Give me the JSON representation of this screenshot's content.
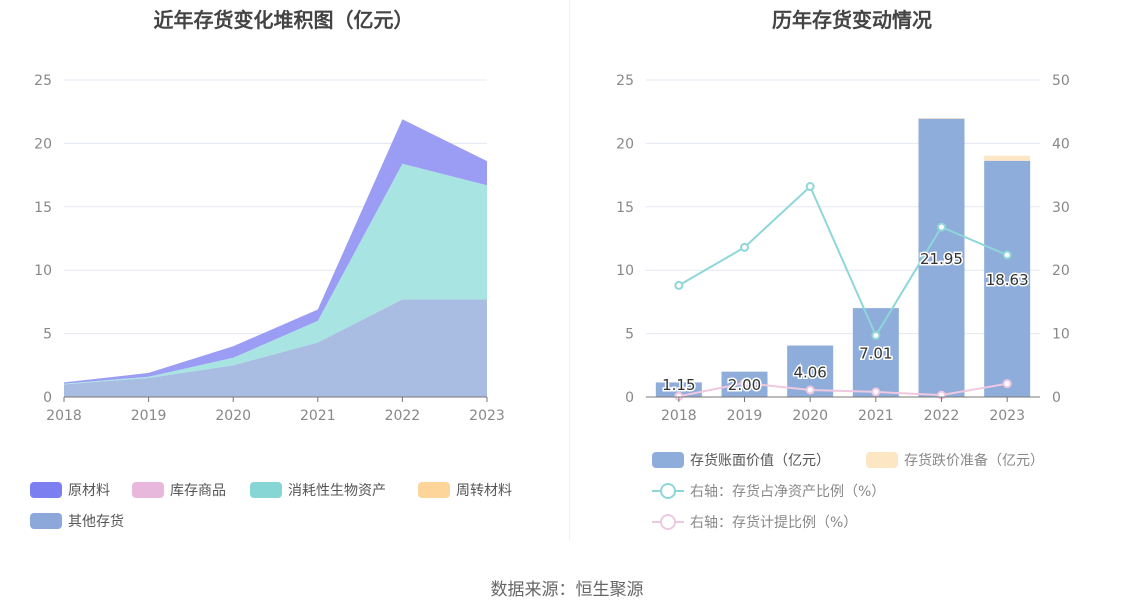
{
  "left_chart": {
    "title": "近年存货变化堆积图（亿元）",
    "legend": [
      {
        "name": "原材料",
        "color": "#7b7ff0"
      },
      {
        "name": "库存商品",
        "color": "#e8b8dc"
      },
      {
        "name": "消耗性生物资产",
        "color": "#86d6d6"
      },
      {
        "name": "周转材料",
        "color": "#fdd59a"
      },
      {
        "name": "其他存货",
        "color": "#8ca8db"
      }
    ]
  },
  "right_chart": {
    "title": "历年存货变动情况",
    "legend": [
      {
        "name": "存货账面价值（亿元）",
        "color": "#8eaddb"
      },
      {
        "name": "存货跌价准备（亿元）",
        "color": "#fde6c4"
      },
      {
        "name": "右轴：存货占净资产比例（%）",
        "color": "#8fd6d9"
      },
      {
        "name": "右轴：存货计提比例（%）",
        "color": "#f0c8e0"
      }
    ]
  },
  "chart_data": [
    {
      "type": "area",
      "title": "近年存货变化堆积图（亿元）",
      "stacked": true,
      "x": [
        "2018",
        "2019",
        "2020",
        "2021",
        "2022",
        "2023"
      ],
      "ylim": [
        0,
        25
      ],
      "yticks": [
        0,
        5,
        10,
        15,
        20,
        25
      ],
      "grid": true,
      "legend_position": "bottom",
      "series": [
        {
          "name": "其他存货",
          "color": "#a9bde3",
          "values": [
            1.0,
            1.5,
            2.5,
            4.3,
            7.7,
            7.7
          ]
        },
        {
          "name": "周转材料",
          "color": "#fdd59a",
          "values": [
            0,
            0,
            0,
            0,
            0,
            0
          ]
        },
        {
          "name": "消耗性生物资产",
          "color": "#a8e4e2",
          "values": [
            0.05,
            0.1,
            0.6,
            1.7,
            10.7,
            9.0
          ]
        },
        {
          "name": "库存商品",
          "color": "#e8b8dc",
          "values": [
            0,
            0,
            0,
            0,
            0,
            0
          ]
        },
        {
          "name": "原材料",
          "color": "#9b9cf3",
          "values": [
            0.1,
            0.3,
            0.9,
            0.9,
            3.5,
            1.9
          ]
        }
      ]
    },
    {
      "type": "bar",
      "title": "历年存货变动情况",
      "stacked": true,
      "categories": [
        "2018",
        "2019",
        "2020",
        "2021",
        "2022",
        "2023"
      ],
      "ylim": [
        0,
        25
      ],
      "yticks": [
        0,
        5,
        10,
        15,
        20,
        25
      ],
      "y2lim": [
        0,
        50
      ],
      "y2ticks": [
        0,
        10,
        20,
        30,
        40,
        50
      ],
      "grid": true,
      "legend_position": "bottom",
      "series": [
        {
          "name": "存货账面价值（亿元）",
          "color": "#8eaddb",
          "values": [
            1.15,
            2.0,
            4.06,
            7.01,
            21.95,
            18.63
          ],
          "labels": [
            "1.15",
            "2.00",
            "4.06",
            "7.01",
            "21.95",
            "18.63"
          ]
        },
        {
          "name": "存货跌价准备（亿元）",
          "color": "#fde6c4",
          "values": [
            0,
            0,
            0,
            0,
            0.05,
            0.4
          ]
        }
      ],
      "lines": [
        {
          "name": "右轴：存货占净资产比例（%）",
          "axis": "right",
          "color": "#8fd6d9",
          "values": [
            17.6,
            23.6,
            33.2,
            9.7,
            26.8,
            22.4
          ]
        },
        {
          "name": "右轴：存货计提比例（%）",
          "axis": "right",
          "color": "#f0c8e0",
          "values": [
            0.1,
            2.2,
            1.1,
            0.8,
            0.3,
            2.1
          ]
        }
      ]
    }
  ],
  "source": "数据来源：恒生聚源"
}
